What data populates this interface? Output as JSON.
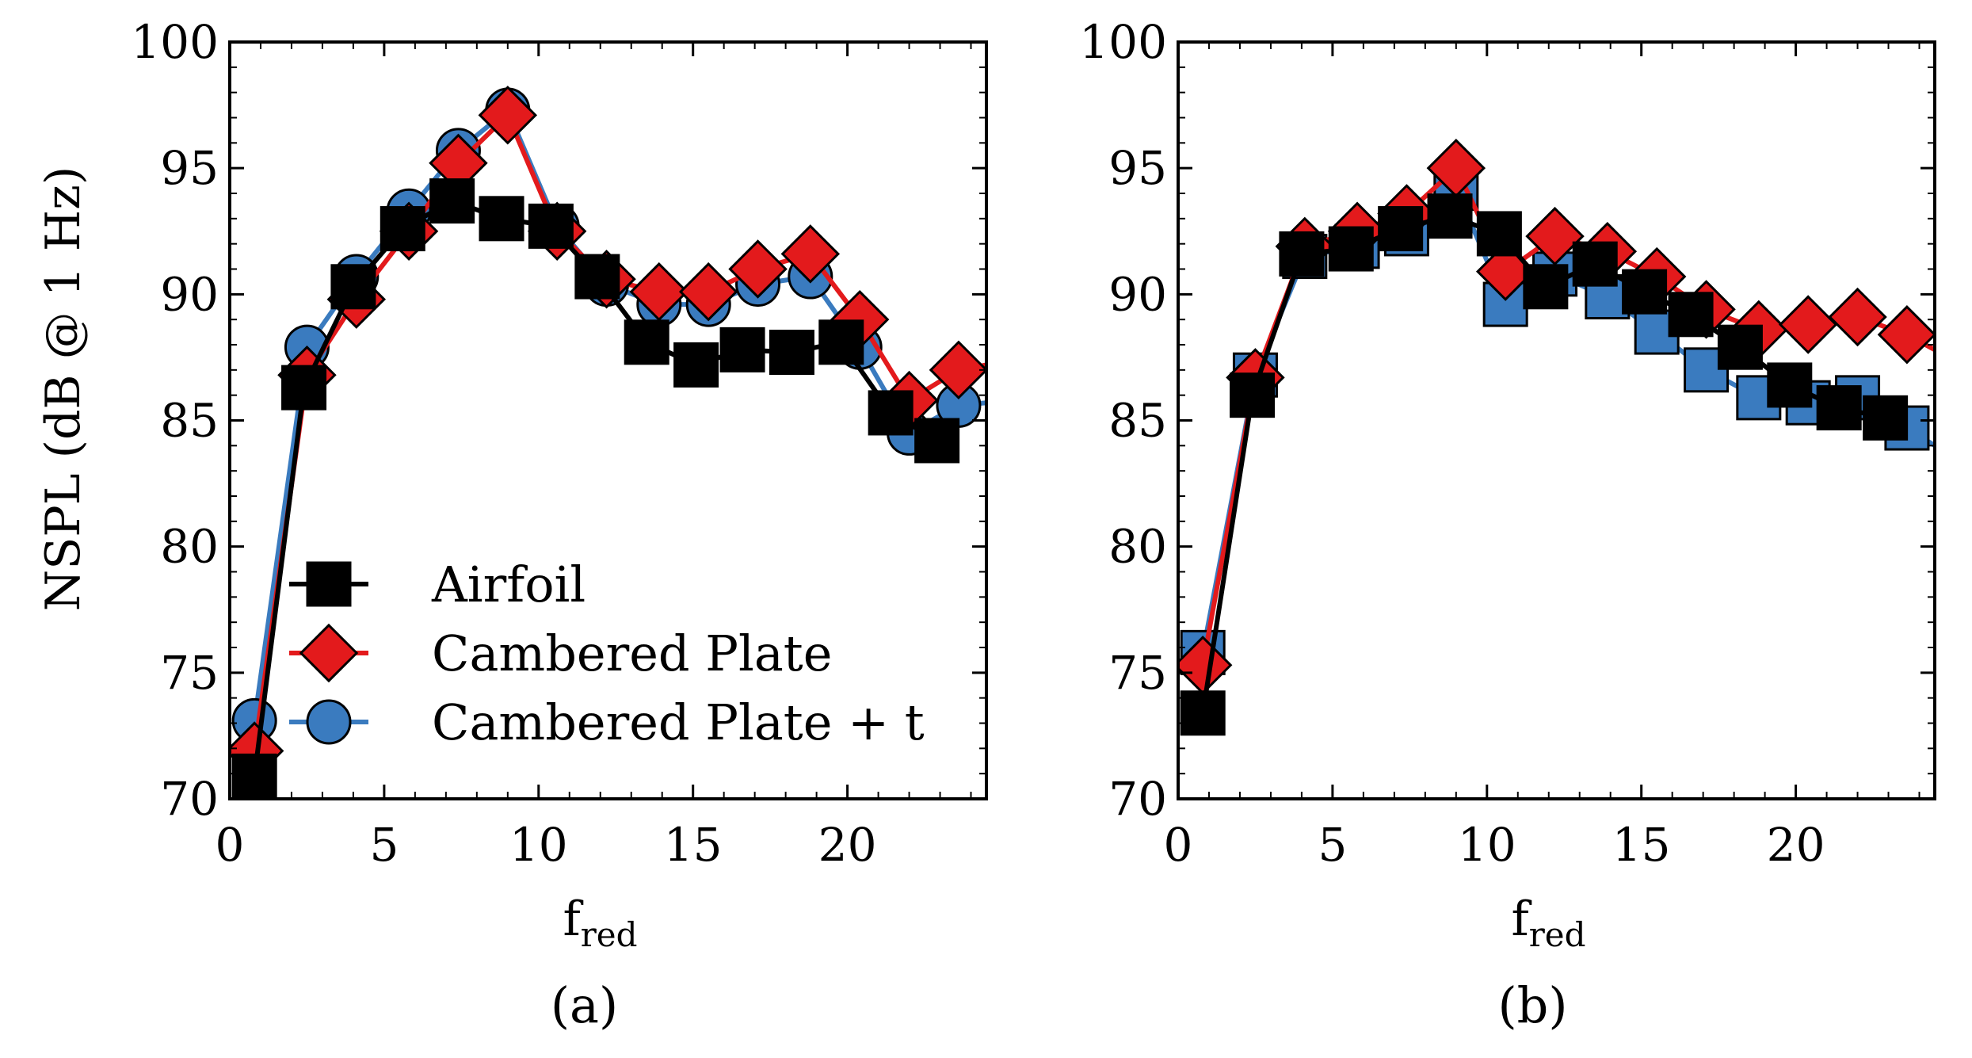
{
  "colors": {
    "airfoil": "#000000",
    "cambered_plate": "#e31a1c",
    "cambered_plate_t": "#3a7bbf",
    "marker_edge": "#000000"
  },
  "chart_data": [
    {
      "type": "line",
      "panel_label": "(a)",
      "xlabel": "f",
      "xlabel_sub": "red",
      "ylabel": "NSPL (dB @ 1 Hz)",
      "xlim": [
        0,
        24.5
      ],
      "ylim": [
        70,
        100
      ],
      "xticks": [
        0,
        5,
        10,
        15,
        20
      ],
      "yticks": [
        70,
        75,
        80,
        85,
        90,
        95,
        100
      ],
      "legend": {
        "position": "lower-left",
        "entries": [
          "Airfoil",
          "Cambered Plate",
          "Cambered Plate + t"
        ]
      },
      "series": [
        {
          "name": "Airfoil",
          "marker": "square",
          "x": [
            0.8,
            2.4,
            4.0,
            5.6,
            7.2,
            8.8,
            10.4,
            11.9,
            13.5,
            15.1,
            16.6,
            18.2,
            19.8,
            21.4,
            22.9,
            23.2
          ],
          "y": [
            70.9,
            86.3,
            90.3,
            92.6,
            93.7,
            93.0,
            92.7,
            90.7,
            88.1,
            87.2,
            87.8,
            87.7,
            88.1,
            85.3,
            84.2,
            83.9
          ],
          "marker_count": 15
        },
        {
          "name": "Cambered Plate",
          "marker": "diamond",
          "x": [
            0.8,
            2.5,
            4.1,
            5.8,
            7.4,
            9.0,
            10.6,
            12.2,
            13.9,
            15.5,
            17.1,
            18.8,
            20.4,
            22.0,
            23.6,
            24.5
          ],
          "y": [
            71.9,
            86.8,
            89.8,
            92.5,
            95.2,
            97.1,
            92.5,
            90.6,
            90.1,
            90.1,
            91.0,
            91.6,
            89.0,
            85.8,
            87.0,
            87.2
          ],
          "marker_count": 15
        },
        {
          "name": "Cambered Plate + t",
          "marker": "circle",
          "x": [
            0.8,
            2.5,
            4.1,
            5.8,
            7.4,
            9.0,
            10.6,
            12.2,
            13.9,
            15.5,
            17.1,
            18.8,
            20.4,
            22.0,
            23.6,
            24.5
          ],
          "y": [
            73.1,
            87.9,
            90.7,
            93.3,
            95.7,
            97.3,
            92.7,
            90.4,
            89.6,
            89.6,
            90.4,
            90.7,
            87.9,
            84.5,
            85.6,
            85.7
          ],
          "marker_count": 15
        }
      ]
    },
    {
      "type": "line",
      "panel_label": "(b)",
      "xlabel": "f",
      "xlabel_sub": "red",
      "ylabel": "",
      "xlim": [
        0,
        24.5
      ],
      "ylim": [
        70,
        100
      ],
      "xticks": [
        0,
        5,
        10,
        15,
        20
      ],
      "yticks": [
        70,
        75,
        80,
        85,
        90,
        95,
        100
      ],
      "series": [
        {
          "name": "Airfoil",
          "marker": "square",
          "x": [
            0.8,
            2.4,
            4.0,
            5.6,
            7.2,
            8.8,
            10.4,
            11.9,
            13.5,
            15.1,
            16.6,
            18.2,
            19.8,
            21.4,
            22.9,
            23.2
          ],
          "y": [
            73.4,
            86.0,
            91.6,
            91.8,
            92.6,
            93.1,
            92.4,
            90.3,
            91.2,
            90.1,
            89.2,
            87.9,
            86.4,
            85.5,
            85.1,
            84.8
          ],
          "marker_count": 15
        },
        {
          "name": "Cambered Plate",
          "marker": "diamond",
          "x": [
            0.8,
            2.5,
            4.1,
            5.8,
            7.4,
            9.0,
            10.6,
            12.2,
            13.9,
            15.5,
            17.1,
            18.8,
            20.4,
            22.0,
            23.6,
            24.5
          ],
          "y": [
            75.3,
            86.7,
            91.9,
            92.5,
            93.2,
            95.0,
            90.9,
            92.3,
            91.7,
            90.7,
            89.4,
            88.6,
            88.8,
            89.1,
            88.4,
            87.8
          ],
          "marker_count": 15
        },
        {
          "name": "Cambered Plate + t",
          "marker": "square",
          "x": [
            0.8,
            2.5,
            4.1,
            5.8,
            7.4,
            9.0,
            10.6,
            12.2,
            13.9,
            15.5,
            17.1,
            18.8,
            20.4,
            22.0,
            23.6,
            24.5
          ],
          "y": [
            75.8,
            86.8,
            91.5,
            91.9,
            92.4,
            94.2,
            89.6,
            90.8,
            89.9,
            88.5,
            87.0,
            85.9,
            85.7,
            85.9,
            84.7,
            84.0
          ],
          "marker_count": 15
        }
      ]
    }
  ]
}
